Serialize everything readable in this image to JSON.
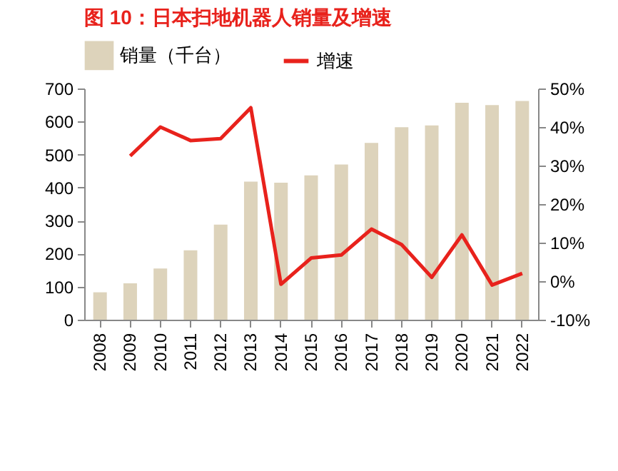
{
  "chart_data": {
    "type": "bar",
    "title": "图 10：日本扫地机器人销量及增速",
    "categories": [
      "2008",
      "2009",
      "2010",
      "2011",
      "2012",
      "2013",
      "2014",
      "2015",
      "2016",
      "2017",
      "2018",
      "2019",
      "2020",
      "2021",
      "2022"
    ],
    "series": [
      {
        "name": "销量（千台）",
        "color": "#ddd3bb",
        "values": [
          83,
          110,
          155,
          210,
          288,
          418,
          415,
          437,
          470,
          535,
          583,
          588,
          657,
          650,
          662
        ]
      },
      {
        "name": "增速",
        "type": "line",
        "axis": "y2",
        "color": "#e8221c",
        "values": [
          null,
          32.5,
          40,
          36.5,
          37,
          45,
          -0.8,
          6,
          6.8,
          13.5,
          9.5,
          1,
          12,
          -1,
          2
        ]
      }
    ],
    "ylim": [
      0,
      700
    ],
    "yticks": [
      0,
      100,
      200,
      300,
      400,
      500,
      600,
      700
    ],
    "y2lim": [
      -10,
      50
    ],
    "y2ticks": [
      {
        "value": -10,
        "label": "-10%"
      },
      {
        "value": 0,
        "label": "0%"
      },
      {
        "value": 10,
        "label": "10%"
      },
      {
        "value": 20,
        "label": "20%"
      },
      {
        "value": 30,
        "label": "30%"
      },
      {
        "value": 40,
        "label": "40%"
      },
      {
        "value": 50,
        "label": "50%"
      }
    ],
    "legend": "top",
    "grid": false
  }
}
